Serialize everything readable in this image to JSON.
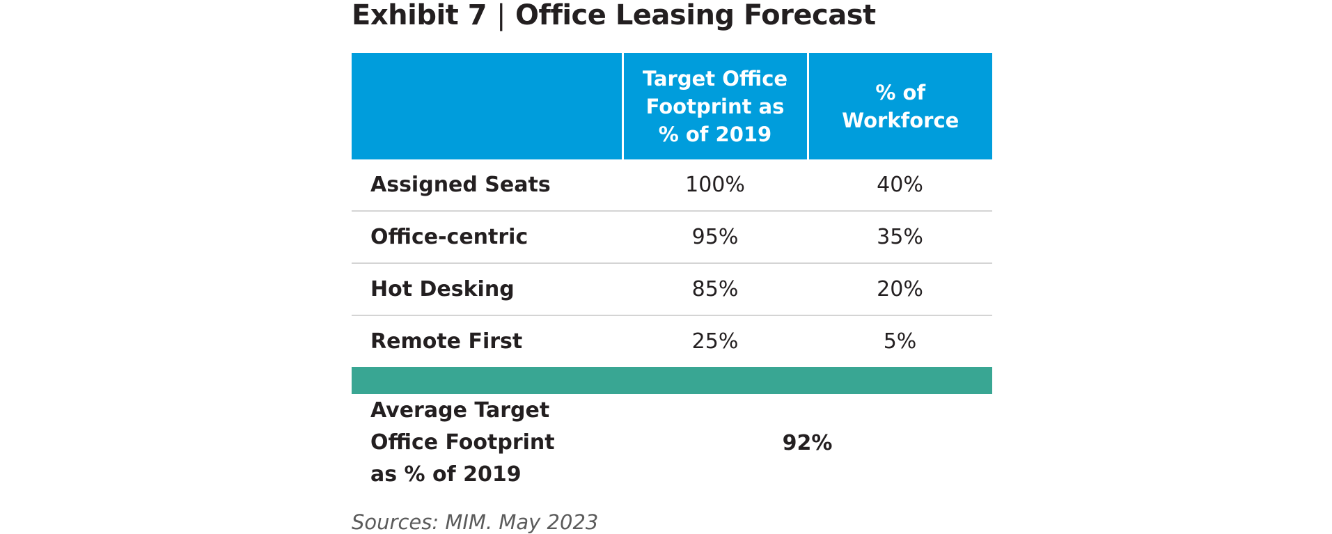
{
  "title": {
    "exhibit": "Exhibit 7",
    "separator": "|",
    "name": "Office Leasing Forecast"
  },
  "table": {
    "headers": [
      "",
      "Target Office Footprint as % of 2019",
      "% of Workforce"
    ],
    "rows": [
      {
        "label": "Assigned Seats",
        "footprint": "100%",
        "workforce": "40%"
      },
      {
        "label": "Office-centric",
        "footprint": "95%",
        "workforce": "35%"
      },
      {
        "label": "Hot Desking",
        "footprint": "85%",
        "workforce": "20%"
      },
      {
        "label": "Remote First",
        "footprint": "25%",
        "workforce": "5%"
      }
    ],
    "summary": {
      "label": "Average Target Office Footprint as % of 2019",
      "value": "92%"
    }
  },
  "source": "Sources: MIM. May 2023",
  "colors": {
    "header_bg": "#009ddc",
    "band": "#39a693",
    "divider": "#d4d4d4",
    "text": "#231f20"
  }
}
